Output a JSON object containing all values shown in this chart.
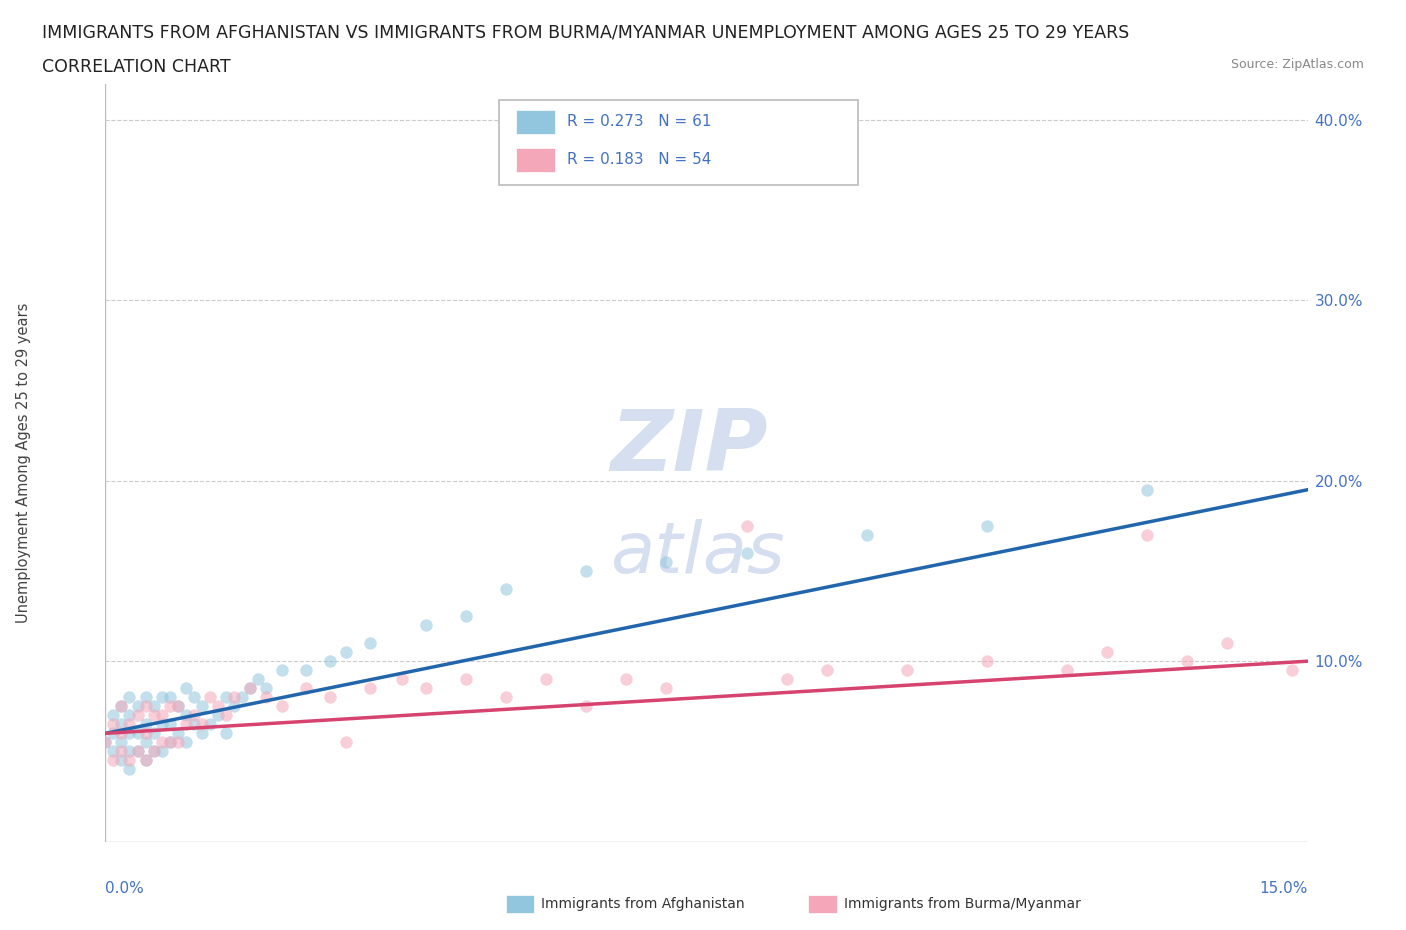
{
  "title_line1": "IMMIGRANTS FROM AFGHANISTAN VS IMMIGRANTS FROM BURMA/MYANMAR UNEMPLOYMENT AMONG AGES 25 TO 29 YEARS",
  "title_line2": "CORRELATION CHART",
  "source": "Source: ZipAtlas.com",
  "ylabel": "Unemployment Among Ages 25 to 29 years",
  "legend_entries": [
    {
      "label": "Immigrants from Afghanistan",
      "R": "0.273",
      "N": "61",
      "color": "#92c5de"
    },
    {
      "label": "Immigrants from Burma/Myanmar",
      "R": "0.183",
      "N": "54",
      "color": "#f4a7b9"
    }
  ],
  "xlim": [
    0.0,
    0.15
  ],
  "ylim": [
    0.0,
    0.42
  ],
  "ytick_vals": [
    0.1,
    0.2,
    0.3,
    0.4
  ],
  "ytick_labels": [
    "10.0%",
    "20.0%",
    "30.0%",
    "40.0%"
  ],
  "afghanistan_x": [
    0.0,
    0.001,
    0.001,
    0.001,
    0.002,
    0.002,
    0.002,
    0.002,
    0.003,
    0.003,
    0.003,
    0.003,
    0.003,
    0.004,
    0.004,
    0.004,
    0.005,
    0.005,
    0.005,
    0.005,
    0.006,
    0.006,
    0.006,
    0.007,
    0.007,
    0.007,
    0.008,
    0.008,
    0.008,
    0.009,
    0.009,
    0.01,
    0.01,
    0.01,
    0.011,
    0.011,
    0.012,
    0.012,
    0.013,
    0.014,
    0.015,
    0.015,
    0.016,
    0.017,
    0.018,
    0.019,
    0.02,
    0.022,
    0.025,
    0.028,
    0.03,
    0.033,
    0.04,
    0.045,
    0.05,
    0.06,
    0.07,
    0.08,
    0.095,
    0.11,
    0.13
  ],
  "afghanistan_y": [
    0.055,
    0.05,
    0.06,
    0.07,
    0.045,
    0.055,
    0.065,
    0.075,
    0.04,
    0.05,
    0.06,
    0.07,
    0.08,
    0.05,
    0.06,
    0.075,
    0.045,
    0.055,
    0.065,
    0.08,
    0.05,
    0.06,
    0.075,
    0.05,
    0.065,
    0.08,
    0.055,
    0.065,
    0.08,
    0.06,
    0.075,
    0.055,
    0.07,
    0.085,
    0.065,
    0.08,
    0.06,
    0.075,
    0.065,
    0.07,
    0.06,
    0.08,
    0.075,
    0.08,
    0.085,
    0.09,
    0.085,
    0.095,
    0.095,
    0.1,
    0.105,
    0.11,
    0.12,
    0.125,
    0.14,
    0.15,
    0.155,
    0.16,
    0.17,
    0.175,
    0.195
  ],
  "burma_x": [
    0.0,
    0.001,
    0.001,
    0.002,
    0.002,
    0.002,
    0.003,
    0.003,
    0.004,
    0.004,
    0.005,
    0.005,
    0.005,
    0.006,
    0.006,
    0.007,
    0.007,
    0.008,
    0.008,
    0.009,
    0.009,
    0.01,
    0.011,
    0.012,
    0.013,
    0.014,
    0.015,
    0.016,
    0.018,
    0.02,
    0.022,
    0.025,
    0.028,
    0.03,
    0.033,
    0.037,
    0.04,
    0.045,
    0.05,
    0.055,
    0.06,
    0.065,
    0.07,
    0.08,
    0.085,
    0.09,
    0.1,
    0.11,
    0.12,
    0.125,
    0.13,
    0.135,
    0.14,
    0.148
  ],
  "burma_y": [
    0.055,
    0.045,
    0.065,
    0.05,
    0.06,
    0.075,
    0.045,
    0.065,
    0.05,
    0.07,
    0.045,
    0.06,
    0.075,
    0.05,
    0.07,
    0.055,
    0.07,
    0.055,
    0.075,
    0.055,
    0.075,
    0.065,
    0.07,
    0.065,
    0.08,
    0.075,
    0.07,
    0.08,
    0.085,
    0.08,
    0.075,
    0.085,
    0.08,
    0.055,
    0.085,
    0.09,
    0.085,
    0.09,
    0.08,
    0.09,
    0.075,
    0.09,
    0.085,
    0.175,
    0.09,
    0.095,
    0.095,
    0.1,
    0.095,
    0.105,
    0.17,
    0.1,
    0.11,
    0.095
  ],
  "afghanistan_trend_x": [
    0.0,
    0.15
  ],
  "afghanistan_trend_y": [
    0.06,
    0.195
  ],
  "burma_trend_x": [
    0.0,
    0.15
  ],
  "burma_trend_y": [
    0.06,
    0.1
  ],
  "scatter_alpha": 0.55,
  "scatter_size": 80,
  "afghanistan_color": "#92c5de",
  "burma_color": "#f4a7b9",
  "trend_afghanistan_color": "#2166ac",
  "trend_burma_color": "#d6436e",
  "grid_color": "#cccccc",
  "background_color": "#ffffff",
  "title_fontsize": 12.5,
  "axis_label_fontsize": 10.5,
  "tick_fontsize": 11,
  "legend_fontsize": 11,
  "watermark_color": "#d5dff0",
  "watermark_fontsize_zip": 62,
  "watermark_fontsize_atlas": 52
}
